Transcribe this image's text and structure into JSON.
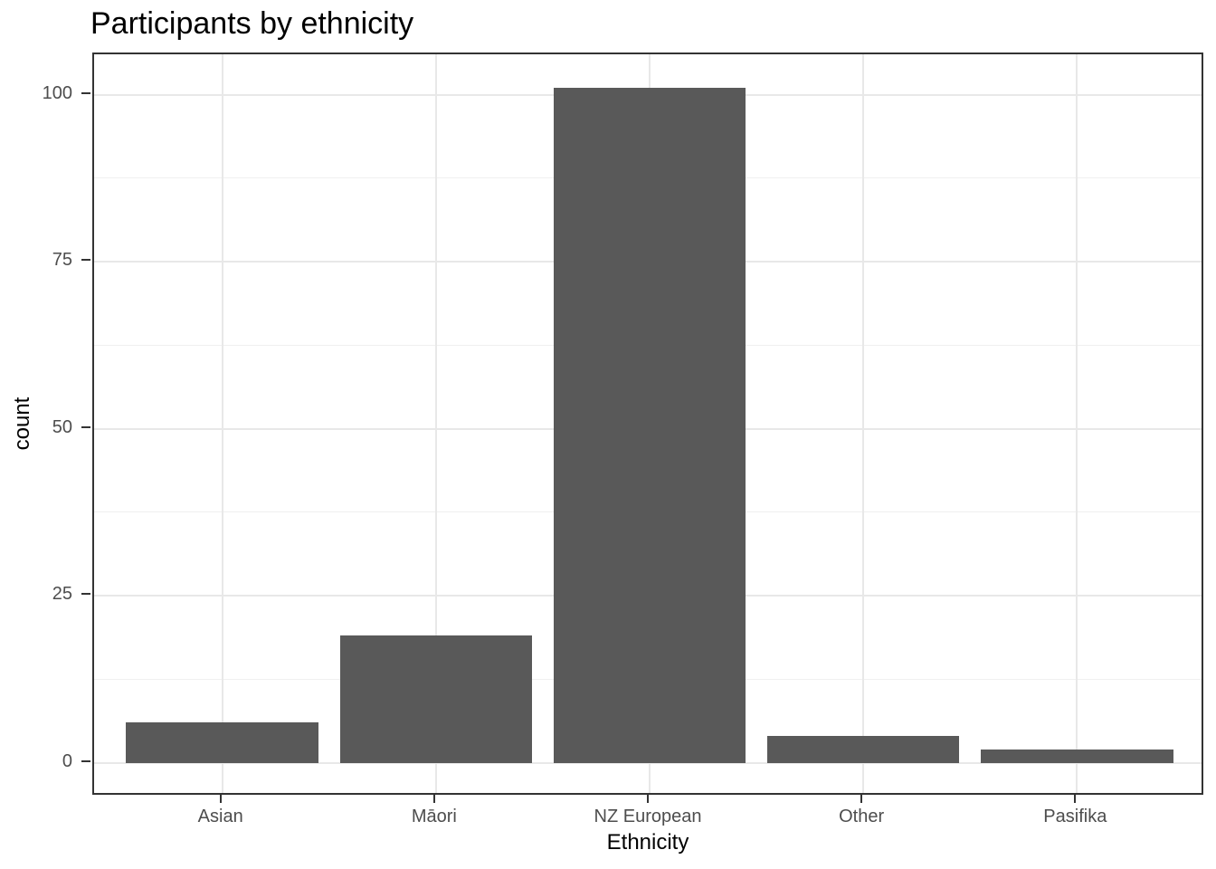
{
  "figure": {
    "background": "#ffffff"
  },
  "chart_data": {
    "type": "bar",
    "title": "Participants by ethnicity",
    "xlabel": "Ethnicity",
    "ylabel": "count",
    "categories": [
      "Asian",
      "Māori",
      "NZ European",
      "Other",
      "Pasifika"
    ],
    "values": [
      6,
      19,
      101,
      4,
      2
    ],
    "yticks": [
      0,
      25,
      50,
      75,
      100
    ],
    "yticks_minor": [
      12.5,
      37.5,
      62.5,
      87.5
    ],
    "ylim": [
      -5.05,
      106.05
    ],
    "grid": true,
    "legend_position": "none",
    "bar_width_fraction": 0.9,
    "discrete_expand": 0.6,
    "colors": {
      "bar": "#595959",
      "panel_border": "#333333",
      "grid_major": "#e8e8e8",
      "grid_minor": "#f0f0f0",
      "tick_mark": "#333333",
      "tick_label": "#4d4d4d",
      "title": "#000000",
      "axis_title": "#000000",
      "panel_background": "#ffffff"
    }
  }
}
